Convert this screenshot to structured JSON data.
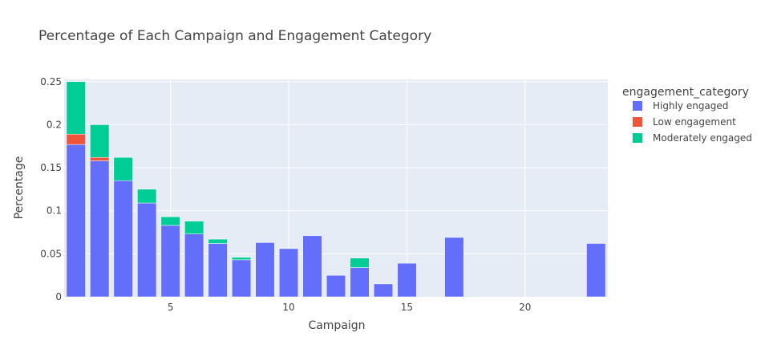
{
  "chart_data": {
    "type": "bar",
    "barmode": "stack",
    "title": "Percentage of Each Campaign and Engagement Category",
    "xlabel": "Campaign",
    "ylabel": "Percentage",
    "xlim": [
      0.5,
      23.5
    ],
    "ylim": [
      0,
      0.2526
    ],
    "x_ticks": [
      5,
      10,
      15,
      20
    ],
    "y_ticks": [
      0,
      0.05,
      0.1,
      0.15,
      0.2,
      0.25
    ],
    "y_tick_labels": [
      "0",
      "0.05",
      "0.1",
      "0.15",
      "0.2",
      "0.25"
    ],
    "grid": true,
    "legend_title": "engagement_category",
    "legend_position": "right",
    "colors": {
      "plot_background": "#e5ecf6",
      "grid": "#ffffff",
      "text": "#444444"
    },
    "series": [
      {
        "name": "Highly engaged",
        "color": "#636efa",
        "points": [
          {
            "x": 1,
            "y": 0.177
          },
          {
            "x": 2,
            "y": 0.158
          },
          {
            "x": 3,
            "y": 0.135
          },
          {
            "x": 4,
            "y": 0.109
          },
          {
            "x": 5,
            "y": 0.083
          },
          {
            "x": 6,
            "y": 0.073
          },
          {
            "x": 7,
            "y": 0.062
          },
          {
            "x": 8,
            "y": 0.043
          },
          {
            "x": 9,
            "y": 0.063
          },
          {
            "x": 10,
            "y": 0.056
          },
          {
            "x": 11,
            "y": 0.071
          },
          {
            "x": 12,
            "y": 0.025
          },
          {
            "x": 13,
            "y": 0.034
          },
          {
            "x": 14,
            "y": 0.015
          },
          {
            "x": 15,
            "y": 0.039
          },
          {
            "x": 17,
            "y": 0.069
          },
          {
            "x": 23,
            "y": 0.062
          }
        ]
      },
      {
        "name": "Low engagement",
        "color": "#ef553b",
        "points": [
          {
            "x": 1,
            "y": 0.012
          },
          {
            "x": 2,
            "y": 0.004
          }
        ]
      },
      {
        "name": "Moderately engaged",
        "color": "#00cc96",
        "points": [
          {
            "x": 1,
            "y": 0.061
          },
          {
            "x": 2,
            "y": 0.038
          },
          {
            "x": 3,
            "y": 0.027
          },
          {
            "x": 4,
            "y": 0.016
          },
          {
            "x": 5,
            "y": 0.01
          },
          {
            "x": 6,
            "y": 0.015
          },
          {
            "x": 7,
            "y": 0.005
          },
          {
            "x": 8,
            "y": 0.003
          },
          {
            "x": 13,
            "y": 0.011
          }
        ]
      }
    ]
  }
}
